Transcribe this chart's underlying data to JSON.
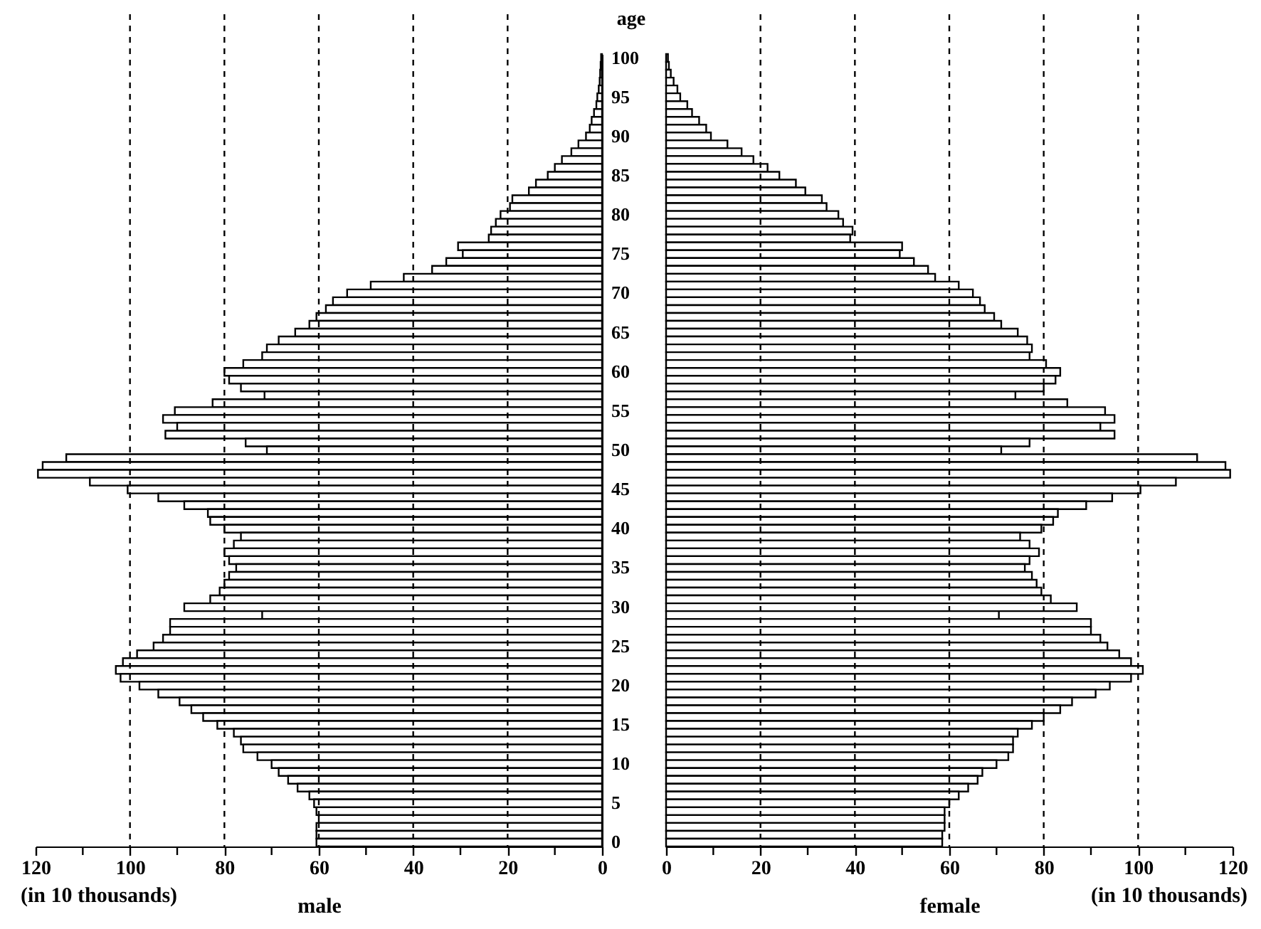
{
  "chart_data": [
    {
      "type": "bar",
      "orientation": "horizontal",
      "ylabel": "age",
      "xlabel": "male",
      "annotations": [
        "(in 10 thousands)"
      ],
      "color": "#ffffff",
      "categories": [
        "100",
        null,
        null,
        null,
        null,
        "95",
        null,
        null,
        null,
        null,
        "90",
        null,
        null,
        null,
        null,
        "85",
        null,
        null,
        null,
        null,
        "80",
        null,
        null,
        null,
        null,
        "75",
        null,
        null,
        null,
        null,
        "70",
        null,
        null,
        null,
        null,
        "65",
        null,
        null,
        null,
        null,
        "60",
        null,
        null,
        null,
        null,
        "55",
        null,
        null,
        null,
        null,
        "50",
        null,
        null,
        null,
        null,
        "45",
        null,
        null,
        null,
        null,
        "40",
        null,
        null,
        null,
        null,
        "35",
        null,
        null,
        null,
        null,
        "30",
        null,
        null,
        null,
        null,
        "25",
        null,
        null,
        null,
        null,
        "20",
        null,
        null,
        null,
        null,
        "15",
        null,
        null,
        null,
        null,
        "10",
        null,
        null,
        null,
        null,
        "5",
        null,
        null,
        null,
        null,
        "0"
      ],
      "values": [
        0.2,
        0.3,
        0.4,
        0.5,
        0.7,
        1,
        1.2,
        1.7,
        2.2,
        2.6,
        3.4,
        5,
        6.5,
        8.5,
        10,
        11.5,
        14,
        15.5,
        19,
        19.5,
        21.5,
        22.5,
        23.5,
        24,
        30.5,
        29.5,
        33,
        36,
        42,
        49,
        54,
        57,
        58.5,
        60.5,
        62,
        65,
        68.5,
        71,
        72,
        76,
        80,
        79,
        76.5,
        71.5,
        82.5,
        90.5,
        93,
        90,
        92.5,
        75.5,
        71,
        113.5,
        118.5,
        119.5,
        108.5,
        100.5,
        94,
        88.5,
        83.5,
        83,
        80,
        76.5,
        78,
        80,
        79,
        77.5,
        79,
        80,
        81,
        83,
        88.5,
        72,
        91.5,
        91.5,
        93,
        95,
        98.5,
        101.5,
        103,
        102,
        98,
        94,
        89.5,
        87,
        84.5,
        81.5,
        78,
        76.5,
        76,
        73,
        70,
        68.5,
        66.5,
        64.5,
        62,
        61,
        60.5,
        60,
        60.5,
        60.5,
        60.5
      ],
      "xlim": [
        120,
        0
      ],
      "xticks": [
        120,
        {
          "value": 110,
          "label": null
        },
        100,
        {
          "value": 90,
          "label": null
        },
        80,
        {
          "value": 70,
          "label": null
        },
        60,
        {
          "value": 50,
          "label": null
        },
        40,
        {
          "value": 30,
          "label": null
        },
        20,
        {
          "value": 10,
          "label": null
        },
        0
      ],
      "ref_lines": [
        {
          "axis": "x",
          "value": 100,
          "line_style": "dashed",
          "color": "#000000"
        },
        {
          "axis": "x",
          "value": 80,
          "line_style": "dashed",
          "color": "#000000"
        },
        {
          "axis": "x",
          "value": 60,
          "line_style": "dashed",
          "color": "#000000"
        },
        {
          "axis": "x",
          "value": 40,
          "line_style": "dashed",
          "color": "#000000"
        },
        {
          "axis": "x",
          "value": 20,
          "line_style": "dashed",
          "color": "#000000"
        }
      ]
    },
    {
      "type": "bar",
      "orientation": "horizontal",
      "xlabel": "female",
      "annotations": [
        "(in 10 thousands)"
      ],
      "color": "#ffffff",
      "tick_labels": "x",
      "categories": [
        "100",
        null,
        null,
        null,
        null,
        "95",
        null,
        null,
        null,
        null,
        "90",
        null,
        null,
        null,
        null,
        "85",
        null,
        null,
        null,
        null,
        "80",
        null,
        null,
        null,
        null,
        "75",
        null,
        null,
        null,
        null,
        "70",
        null,
        null,
        null,
        null,
        "65",
        null,
        null,
        null,
        null,
        "60",
        null,
        null,
        null,
        null,
        "55",
        null,
        null,
        null,
        null,
        "50",
        null,
        null,
        null,
        null,
        "45",
        null,
        null,
        null,
        null,
        "40",
        null,
        null,
        null,
        null,
        "35",
        null,
        null,
        null,
        null,
        "30",
        null,
        null,
        null,
        null,
        "25",
        null,
        null,
        null,
        null,
        "20",
        null,
        null,
        null,
        null,
        "15",
        null,
        null,
        null,
        null,
        "10",
        null,
        null,
        null,
        null,
        "5",
        null,
        null,
        null,
        null,
        "0"
      ],
      "values": [
        0.4,
        0.6,
        1,
        1.6,
        2.4,
        3,
        4.5,
        5.5,
        7,
        8.5,
        9.5,
        13,
        16,
        18.5,
        21.5,
        24,
        27.5,
        29.5,
        33,
        34,
        36.5,
        37.5,
        39.5,
        39,
        50,
        49.5,
        52.5,
        55.5,
        57,
        62,
        65,
        66.5,
        67.5,
        69.5,
        71,
        74.5,
        76.5,
        77.5,
        77,
        80.5,
        83.5,
        82.5,
        80,
        74,
        85,
        93,
        95,
        92,
        95,
        77,
        71,
        112.5,
        118.5,
        119.5,
        108,
        100.5,
        94.5,
        89,
        83,
        82,
        79.5,
        75,
        77,
        79,
        77,
        76,
        77.5,
        78.5,
        79.5,
        81.5,
        87,
        70.5,
        90,
        90,
        92,
        93.5,
        96,
        98.5,
        101,
        98.5,
        94,
        91,
        86,
        83.5,
        80,
        77.5,
        74.5,
        73.5,
        73.5,
        72.5,
        70,
        67,
        66,
        64,
        62,
        60,
        59,
        59,
        59,
        58.5,
        58.5
      ],
      "xlim": [
        0,
        120
      ],
      "xticks": [
        0,
        {
          "value": 10,
          "label": null
        },
        20,
        {
          "value": 30,
          "label": null
        },
        40,
        {
          "value": 50,
          "label": null
        },
        60,
        {
          "value": 70,
          "label": null
        },
        80,
        {
          "value": 90,
          "label": null
        },
        100,
        {
          "value": 110,
          "label": null
        },
        120
      ],
      "ref_lines": [
        {
          "axis": "x",
          "value": 20,
          "line_style": "dashed",
          "color": "#000000"
        },
        {
          "axis": "x",
          "value": 40,
          "line_style": "dashed",
          "color": "#000000"
        },
        {
          "axis": "x",
          "value": 60,
          "line_style": "dashed",
          "color": "#000000"
        },
        {
          "axis": "x",
          "value": 80,
          "line_style": "dashed",
          "color": "#000000"
        },
        {
          "axis": "x",
          "value": 100,
          "line_style": "dashed",
          "color": "#000000"
        }
      ]
    }
  ]
}
